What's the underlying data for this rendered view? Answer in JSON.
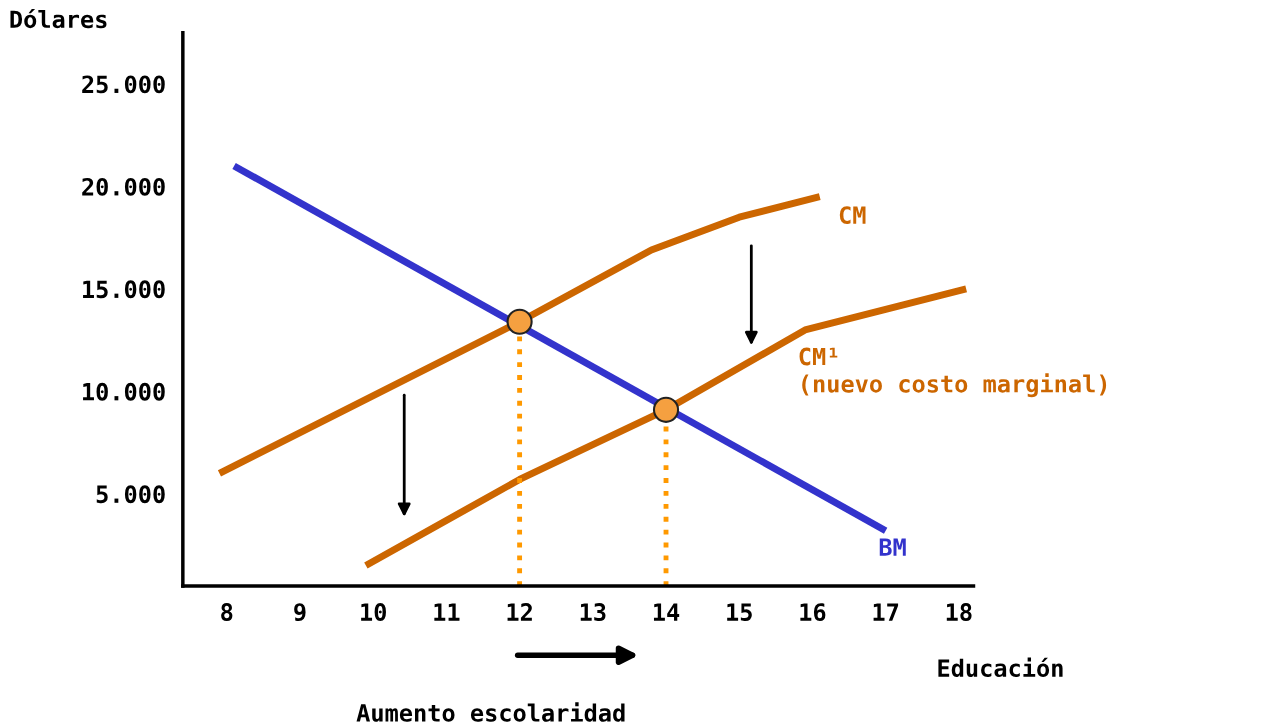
{
  "chart_data": {
    "type": "line",
    "xlabel": "Educación",
    "ylabel": "Dólares",
    "xlim": [
      7.4,
      18.2
    ],
    "ylim": [
      500,
      27500
    ],
    "xticks": [
      8,
      9,
      10,
      11,
      12,
      13,
      14,
      15,
      16,
      17,
      18
    ],
    "yticks": [
      {
        "value": 5000,
        "label": "5.000"
      },
      {
        "value": 10000,
        "label": "10.000"
      },
      {
        "value": 15000,
        "label": "15.000"
      },
      {
        "value": 20000,
        "label": "20.000"
      },
      {
        "value": 25000,
        "label": "25.000"
      }
    ],
    "grid": false,
    "marker": "none",
    "line_style": "solid",
    "series": [
      {
        "name": "BM",
        "color": "#3333cc",
        "x": [
          8.1,
          17.0
        ],
        "values": [
          21000,
          3200
        ]
      },
      {
        "name": "CM",
        "color": "#cc6600",
        "x": [
          7.9,
          12.0,
          13.8,
          15.0,
          16.1
        ],
        "values": [
          6000,
          13400,
          16900,
          18500,
          19500
        ]
      },
      {
        "name": "CM¹",
        "color": "#cc6600",
        "x": [
          9.9,
          12.0,
          14.0,
          15.9,
          18.1
        ],
        "values": [
          1500,
          5700,
          9100,
          13000,
          15000
        ]
      },
      {
        "type": "line",
        "color": "#ff9900",
        "line_style": "dotted",
        "x": [
          12,
          12
        ],
        "values": [
          500,
          13400
        ]
      },
      {
        "type": "line",
        "color": "#ff9900",
        "line_style": "dotted",
        "x": [
          14,
          14
        ],
        "values": [
          500,
          9100
        ]
      },
      {
        "type": "scatter",
        "color": "#f5a040",
        "marker": "circle",
        "x": [
          12,
          14
        ],
        "values": [
          13400,
          9100
        ]
      }
    ],
    "annotations": [
      "(nuevo costo marginal)",
      "Aumento escolaridad"
    ]
  }
}
